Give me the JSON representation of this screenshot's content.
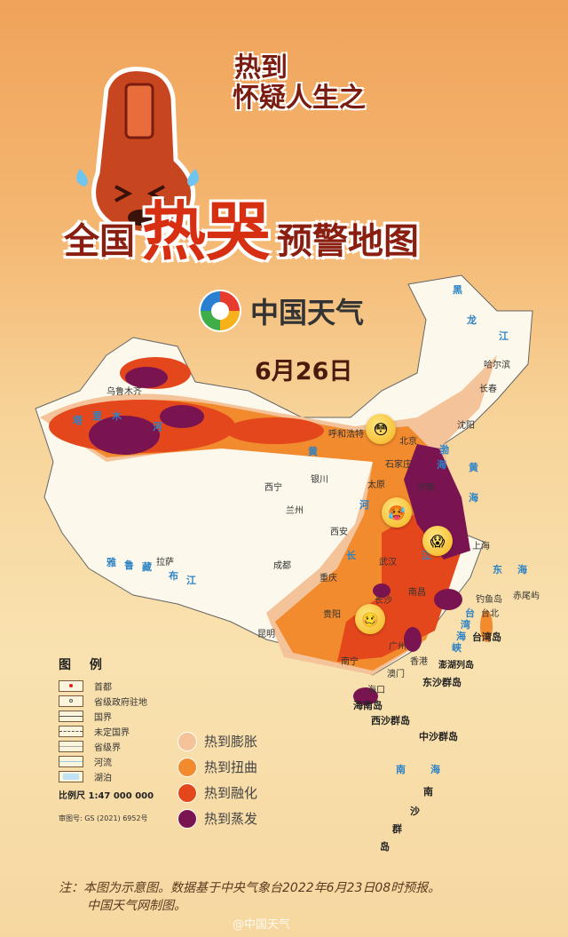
{
  "header": {
    "title_line1": "热到",
    "title_line2": "怀疑人生之",
    "title_prefix": "全国",
    "title_highlight": "热哭",
    "title_suffix": "预警地图"
  },
  "logo": {
    "text": "中国天气"
  },
  "date": "6月26日",
  "map": {
    "cities": [
      "乌鲁木齐",
      "呼和浩特",
      "北京",
      "哈尔滨",
      "长春",
      "沈阳",
      "石家庄",
      "太原",
      "济南",
      "银川",
      "西宁",
      "兰州",
      "西安",
      "成都",
      "重庆",
      "武汉",
      "上海",
      "南昌",
      "长沙",
      "贵阳",
      "昆明",
      "南宁",
      "广州",
      "香港",
      "澳门",
      "海口",
      "台北",
      "拉萨"
    ],
    "water_labels": [
      "黑",
      "龙",
      "江",
      "塔",
      "里",
      "木",
      "河",
      "黄",
      "河",
      "长",
      "江",
      "雅",
      "鲁",
      "藏",
      "布",
      "江",
      "渤",
      "海",
      "黄",
      "海",
      "东",
      "海",
      "台",
      "湾",
      "海",
      "峡",
      "南",
      "海"
    ],
    "islands": [
      "海南岛",
      "台湾岛",
      "钓鱼岛",
      "赤尾屿",
      "澎湖列岛",
      "东沙群岛",
      "西沙群岛",
      "中沙群岛",
      "南",
      "沙",
      "群",
      "岛"
    ]
  },
  "legend": {
    "title": "图 例",
    "items": [
      "首都",
      "省级政府驻地",
      "国界",
      "未定国界",
      "省级界",
      "河流",
      "湖泊"
    ],
    "scale": "比例尺 1:47 000 000",
    "review_no": "审图号: GS (2021) 6952号"
  },
  "heat_levels": [
    {
      "label": "热到膨胀",
      "color": "#f5c39a"
    },
    {
      "label": "热到扭曲",
      "color": "#f28a2e"
    },
    {
      "label": "热到融化",
      "color": "#e5471c"
    },
    {
      "label": "热到蒸发",
      "color": "#7a1451"
    }
  ],
  "note": {
    "line1": "注：本图为示意图。数据基于中央气象台2022年6月23日08时预报。",
    "line2": "中国天气网制图。"
  },
  "watermark": "@中国天气"
}
